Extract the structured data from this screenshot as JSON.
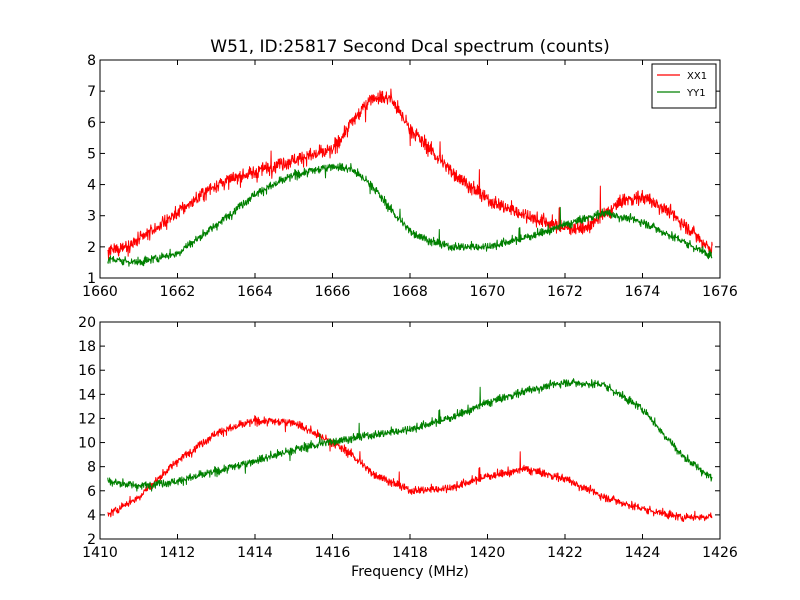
{
  "chart_data": [
    {
      "type": "line",
      "title": "W51, ID:25817 Second Dcal spectrum (counts)",
      "xlabel": "",
      "ylabel": "",
      "xlim": [
        1660,
        1676
      ],
      "ylim": [
        1,
        8
      ],
      "x_ticks": [
        "1660",
        "1662",
        "1664",
        "1666",
        "1668",
        "1670",
        "1672",
        "1674",
        "1676"
      ],
      "y_ticks": [
        "1",
        "2",
        "3",
        "4",
        "5",
        "6",
        "7",
        "8"
      ],
      "legend": "top-right",
      "x_range": [
        1660.2,
        1675.8
      ],
      "series": [
        {
          "name": "XX1",
          "color": "#ff0000",
          "noise": 0.3,
          "x": [
            1660.2,
            1661.0,
            1662.0,
            1663.0,
            1664.0,
            1665.0,
            1666.0,
            1666.5,
            1667.0,
            1667.5,
            1668.0,
            1669.0,
            1670.0,
            1671.0,
            1672.0,
            1672.5,
            1673.0,
            1673.5,
            1674.0,
            1674.5,
            1675.0,
            1675.8
          ],
          "y": [
            1.8,
            2.2,
            3.1,
            4.0,
            4.4,
            4.8,
            5.1,
            6.0,
            6.8,
            6.8,
            5.8,
            4.5,
            3.5,
            3.0,
            2.6,
            2.6,
            3.0,
            3.5,
            3.6,
            3.3,
            2.8,
            1.9
          ]
        },
        {
          "name": "YY1",
          "color": "#008000",
          "noise": 0.18,
          "x": [
            1660.2,
            1661.0,
            1662.0,
            1663.0,
            1664.0,
            1665.0,
            1666.0,
            1666.5,
            1667.0,
            1667.5,
            1668.0,
            1668.5,
            1669.0,
            1670.0,
            1671.0,
            1672.0,
            1673.0,
            1674.0,
            1675.0,
            1675.8
          ],
          "y": [
            1.6,
            1.5,
            1.8,
            2.7,
            3.7,
            4.3,
            4.6,
            4.5,
            4.0,
            3.2,
            2.5,
            2.2,
            2.0,
            2.0,
            2.3,
            2.7,
            3.1,
            2.8,
            2.2,
            1.7
          ]
        }
      ]
    },
    {
      "type": "line",
      "title": "",
      "xlabel": "Frequency (MHz)",
      "ylabel": "",
      "xlim": [
        1410,
        1426
      ],
      "ylim": [
        2,
        20
      ],
      "x_ticks": [
        "1410",
        "1412",
        "1414",
        "1416",
        "1418",
        "1420",
        "1422",
        "1424",
        "1426"
      ],
      "y_ticks": [
        "2",
        "4",
        "6",
        "8",
        "10",
        "12",
        "14",
        "16",
        "18",
        "20"
      ],
      "x_range": [
        1410.2,
        1425.8
      ],
      "series": [
        {
          "color": "#ff0000",
          "noise": 0.45,
          "x": [
            1410.2,
            1411.0,
            1412.0,
            1413.0,
            1414.0,
            1415.0,
            1416.0,
            1416.5,
            1417.0,
            1418.0,
            1419.0,
            1420.0,
            1421.0,
            1422.0,
            1423.0,
            1424.0,
            1425.0,
            1425.8
          ],
          "y": [
            4.0,
            5.5,
            8.5,
            10.8,
            11.8,
            11.7,
            10.0,
            9.0,
            7.5,
            6.0,
            6.2,
            7.2,
            7.8,
            7.0,
            5.5,
            4.5,
            3.8,
            3.9
          ]
        },
        {
          "color": "#008000",
          "noise": 0.45,
          "x": [
            1410.2,
            1411.0,
            1412.0,
            1413.0,
            1414.0,
            1415.0,
            1416.0,
            1417.0,
            1418.0,
            1419.0,
            1420.0,
            1421.0,
            1422.0,
            1423.0,
            1424.0,
            1425.0,
            1425.8
          ],
          "y": [
            6.8,
            6.4,
            6.8,
            7.6,
            8.5,
            9.4,
            10.1,
            10.6,
            11.1,
            12.0,
            13.3,
            14.3,
            15.0,
            14.8,
            12.8,
            9.0,
            7.0
          ]
        }
      ]
    }
  ]
}
